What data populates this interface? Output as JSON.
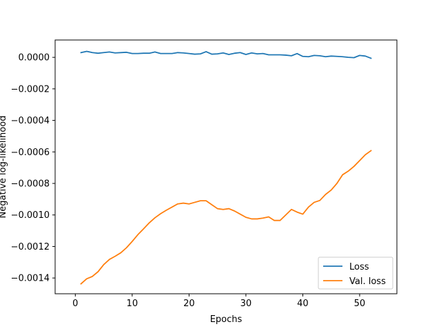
{
  "chart_data": {
    "type": "line",
    "xlabel": "Epochs",
    "ylabel": "Negative log-likelihood",
    "xlim": [
      -3.55,
      56.55
    ],
    "ylim": [
      -0.0015,
      0.00011
    ],
    "xticks": [
      0,
      10,
      20,
      30,
      40,
      50
    ],
    "yticks": [
      0.0,
      -0.0002,
      -0.0004,
      -0.0006,
      -0.0008,
      -0.001,
      -0.0012,
      -0.0014
    ],
    "ytick_labels": [
      "0.0000",
      "−0.0002",
      "−0.0004",
      "−0.0006",
      "−0.0008",
      "−0.0010",
      "−0.0012",
      "−0.0014"
    ],
    "legend_position": "lower-right",
    "x": [
      1,
      2,
      3,
      4,
      5,
      6,
      7,
      8,
      9,
      10,
      11,
      12,
      13,
      14,
      15,
      16,
      17,
      18,
      19,
      20,
      21,
      22,
      23,
      24,
      25,
      26,
      27,
      28,
      29,
      30,
      31,
      32,
      33,
      34,
      35,
      36,
      37,
      38,
      39,
      40,
      41,
      42,
      43,
      44,
      45,
      46,
      47,
      48,
      49,
      50,
      51,
      52
    ],
    "series": [
      {
        "name": "Loss",
        "color": "#1f77b4",
        "values": [
          3e-05,
          3.8e-05,
          3e-05,
          2.6e-05,
          3e-05,
          3.4e-05,
          2.8e-05,
          3e-05,
          3.2e-05,
          2.4e-05,
          2.4e-05,
          2.6e-05,
          2.6e-05,
          3.4e-05,
          2.4e-05,
          2.4e-05,
          2.4e-05,
          3e-05,
          2.8e-05,
          2.4e-05,
          2e-05,
          2.2e-05,
          3.6e-05,
          2e-05,
          2.2e-05,
          2.8e-05,
          1.8e-05,
          2.6e-05,
          3e-05,
          1.8e-05,
          2.8e-05,
          2.2e-05,
          2.4e-05,
          1.6e-05,
          1.6e-05,
          1.6e-05,
          1.4e-05,
          1e-05,
          2.4e-05,
          6e-06,
          4e-06,
          1.2e-05,
          1e-05,
          4e-06,
          8e-06,
          6e-06,
          4e-06,
          0.0,
          -2e-06,
          1.2e-05,
          8e-06,
          -6e-06
        ]
      },
      {
        "name": "Val. loss",
        "color": "#ff7f0e",
        "values": [
          -0.001437,
          -0.001405,
          -0.00139,
          -0.00136,
          -0.001315,
          -0.001282,
          -0.001262,
          -0.00124,
          -0.001208,
          -0.001168,
          -0.001125,
          -0.001088,
          -0.00105,
          -0.001018,
          -0.000992,
          -0.00097,
          -0.00095,
          -0.00093,
          -0.000925,
          -0.00093,
          -0.00092,
          -0.00091,
          -0.00091,
          -0.000935,
          -0.00096,
          -0.000965,
          -0.00096,
          -0.000975,
          -0.000995,
          -0.001015,
          -0.001025,
          -0.001025,
          -0.00102,
          -0.001012,
          -0.001035,
          -0.001035,
          -0.001,
          -0.000965,
          -0.000982,
          -0.000995,
          -0.00095,
          -0.00092,
          -0.000908,
          -0.00087,
          -0.000842,
          -0.0008,
          -0.000745,
          -0.000722,
          -0.000692,
          -0.000655,
          -0.000618,
          -0.000592
        ]
      }
    ]
  }
}
